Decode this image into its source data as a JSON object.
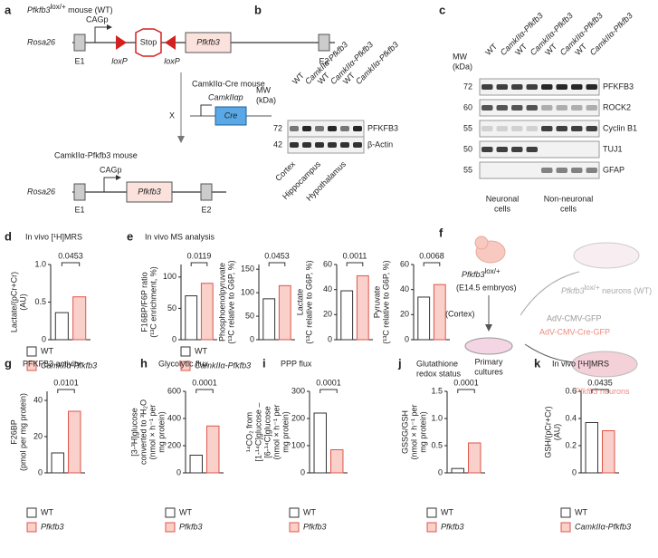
{
  "panels": {
    "a": {
      "letter": "a",
      "wt_gene": "Pfkfb3",
      "wt_sup": "lox/+",
      "wt_rest": " mouse (WT)",
      "cagp": "CAGp",
      "rosa26": "Rosa26",
      "stop": "Stop",
      "pfkfb3": "Pfkfb3",
      "e1": "E1",
      "loxp1": "loxP",
      "loxp2": "loxP",
      "e2": "E2",
      "cre_title": "CamkIIα-Cre mouse",
      "promoter": "CamkIIαp",
      "cross": "X",
      "cre": "Cre",
      "tg_title": "CamkIIα-Pfkfb3 mouse",
      "tg_cagp": "CAGp",
      "tg_rosa26": "Rosa26",
      "tg_pfkfb3": "Pfkfb3",
      "tg_e1": "E1",
      "tg_e2": "E2"
    },
    "b": {
      "letter": "b",
      "mw_label": [
        "MW",
        "(kDa)"
      ],
      "lanes": [
        "WT",
        "CamkIIα-Pfkfb3",
        "WT",
        "CamkIIα-Pfkfb3",
        "WT",
        "CamkIIα-Pfkfb3"
      ],
      "markers": [
        "72",
        "42"
      ],
      "proteins": [
        "PFKFB3",
        "β-Actin"
      ],
      "regions": [
        "Cortex",
        "Hippocampus",
        "Hypothalamus"
      ]
    },
    "c": {
      "letter": "c",
      "mw_label": [
        "MW",
        "(kDa)"
      ],
      "lanes": [
        "WT",
        "CamkIIα-Pfkfb3",
        "WT",
        "CamkIIα-Pfkfb3",
        "WT",
        "CamkIIα-Pfkfb3",
        "WT",
        "CamkIIα-Pfkfb3"
      ],
      "markers": [
        "72",
        "60",
        "55",
        "50",
        "55"
      ],
      "proteins": [
        "PFKFB3",
        "ROCK2",
        "Cyclin B1",
        "TUJ1",
        "GFAP"
      ],
      "groups": [
        [
          "Neuronal",
          "cells"
        ],
        [
          "Non-neuronal",
          "cells"
        ]
      ]
    },
    "d": {
      "letter": "d",
      "title": "In vivo [¹H]MRS",
      "ylabel": [
        "Lactate/(pCr+Cr)",
        "(AU)"
      ],
      "ylim": [
        0,
        1
      ],
      "yticks": [
        0,
        0.5,
        {
          "value": 1,
          "label": "1.0"
        }
      ],
      "values": [
        0.36,
        0.57
      ],
      "p_value": "0.0453",
      "legend": [
        "WT",
        "CamkIIα-Pfkfb3"
      ]
    },
    "e": {
      "letter": "e",
      "title": "In vivo MS analysis",
      "legend": [
        "WT",
        "CamkIIα-Pfkfb3"
      ],
      "charts": [
        {
          "ylabel": [
            "F16BP/F6P ratio",
            "(¹³C enrichment, %)"
          ],
          "ylim": [
            0,
            120
          ],
          "yticks": [
            0,
            50,
            100
          ],
          "values": [
            70,
            90
          ],
          "p_value": "0.0119"
        },
        {
          "ylabel": [
            "Phosphoenolpyruvate",
            "(¹³C relative to G6P, %)"
          ],
          "ylim": [
            0,
            160
          ],
          "yticks": [
            0,
            50,
            100,
            150
          ],
          "values": [
            87,
            115
          ],
          "p_value": "0.0453"
        },
        {
          "ylabel": [
            "Lactate",
            "(¹³C relative to G6P, %)"
          ],
          "ylim": [
            0,
            60
          ],
          "yticks": [
            0,
            20,
            40,
            60
          ],
          "values": [
            39,
            51
          ],
          "p_value": "0.0011"
        },
        {
          "ylabel": [
            "Pyruvate",
            "(¹³C relative to G6P, %)"
          ],
          "ylim": [
            0,
            60
          ],
          "yticks": [
            0,
            20,
            40,
            60
          ],
          "values": [
            34,
            44
          ],
          "p_value": "0.0068"
        }
      ]
    },
    "f": {
      "letter": "f",
      "mouse_gene": "Pfkfb3",
      "mouse_sup": "lox/+",
      "embryos": "(E14.5 embryos)",
      "cortex": "(Cortex)",
      "cultures": [
        "Primary",
        "cultures"
      ],
      "gfp": "AdV-CMV-GFP",
      "cre_gfp": "AdV-CMV-Cre-GFP",
      "wt_gene": "Pfkfb3",
      "wt_sup": "lox/+",
      "wt_rest": " neurons (WT)",
      "ko_gene": "Pfkfb3",
      "ko_rest": " neurons"
    },
    "g": {
      "letter": "g",
      "title": [
        "PFKFB3 activity"
      ],
      "ylabel": [
        "F26BP",
        "(pmol per mg protein)"
      ],
      "ylim": [
        0,
        45
      ],
      "yticks": [
        0,
        20,
        40
      ],
      "values": [
        11,
        34
      ],
      "p_value": "0.0101",
      "legend": [
        "WT",
        "Pfkfb3"
      ]
    },
    "h": {
      "letter": "h",
      "title": [
        "Glycolytic flux"
      ],
      "ylabel": [
        "[3-³H]glucose",
        "converted to ³H₂O",
        "(nmol × h⁻¹ per",
        "mg protein)"
      ],
      "ylim": [
        0,
        600
      ],
      "yticks": [
        0,
        200,
        400,
        600
      ],
      "values": [
        130,
        345
      ],
      "p_value": "0.0001",
      "legend": [
        "WT",
        "Pfkfb3"
      ]
    },
    "i": {
      "letter": "i",
      "title": [
        "PPP flux"
      ],
      "ylabel": [
        "¹⁴CO₂ from",
        "[1-¹⁴C]glucose –",
        "[6-¹⁴C]glucose",
        "(nmol × h⁻¹ per",
        "mg protein)"
      ],
      "ylim": [
        0,
        300
      ],
      "yticks": [
        0,
        100,
        200,
        300
      ],
      "values": [
        220,
        85
      ],
      "p_value": "0.0001",
      "legend": [
        "WT",
        "Pfkfb3"
      ]
    },
    "j": {
      "letter": "j",
      "title": [
        "Glutathione",
        "redox status"
      ],
      "ylabel": [
        "GSSG/GSH",
        "(nmol × h⁻¹ per",
        "mg protein)"
      ],
      "ylim": [
        0,
        1.5
      ],
      "yticks": [
        0,
        0.5,
        {
          "value": 1,
          "label": "1.0"
        },
        1.5
      ],
      "values": [
        0.08,
        0.55
      ],
      "p_value": "0.0001",
      "legend": [
        "WT",
        "Pfkfb3"
      ]
    },
    "k": {
      "letter": "k",
      "title": [
        "In vivo [¹H]MRS"
      ],
      "ylabel": [
        "GSH/(pCr+Cr)",
        "(AU)"
      ],
      "ylim": [
        0,
        0.6
      ],
      "yticks": [
        0,
        0.2,
        0.4,
        0.6
      ],
      "values": [
        0.37,
        0.31
      ],
      "p_value": "0.0435",
      "legend": [
        "WT",
        "CamkIIα-Pfkfb3"
      ]
    }
  }
}
